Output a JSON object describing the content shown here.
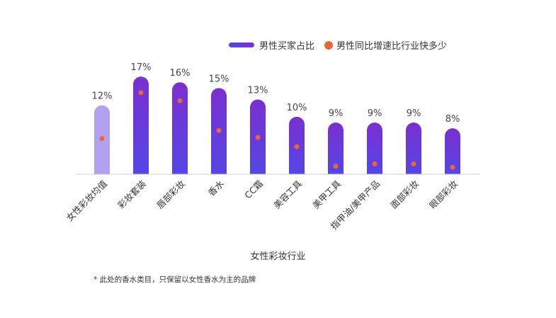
{
  "legend": {
    "bar_label": "男性买家占比",
    "dot_label": "男性同比增速比行业快多少"
  },
  "chart_data": {
    "type": "bar",
    "categories": [
      "女性彩妆均值",
      "彩妆套装",
      "唇部彩妆",
      "香水",
      "CC霜",
      "美容工具",
      "美甲工具",
      "指甲油/美甲产品",
      "面部彩妆",
      "眼部彩妆"
    ],
    "series": [
      {
        "name": "男性买家占比",
        "kind": "bar",
        "values": [
          12,
          17,
          16,
          15,
          13,
          10,
          9,
          9,
          9,
          8
        ],
        "data_labels": [
          "12%",
          "17%",
          "16%",
          "15%",
          "13%",
          "10%",
          "9%",
          "9%",
          "9%",
          "8%"
        ]
      },
      {
        "name": "男性同比增速比行业快多少",
        "kind": "dot",
        "values": [
          6.2,
          14.2,
          12.8,
          7.6,
          6.4,
          4.8,
          1.4,
          1.8,
          1.8,
          1.2
        ]
      }
    ],
    "xlabel": "女性彩妆行业",
    "ylim": [
      0,
      18
    ],
    "grid": false,
    "legend_position": "top-right",
    "colors": {
      "bar_highlight": "#b1a1ef",
      "bar_gradient_top": "#7b2fd0",
      "bar_gradient_bottom": "#5546e6",
      "dot": "#e8673a",
      "axis": "#cccccc"
    }
  },
  "footnote": "* 此处的香水类目，只保留以女性香水为主的品牌"
}
